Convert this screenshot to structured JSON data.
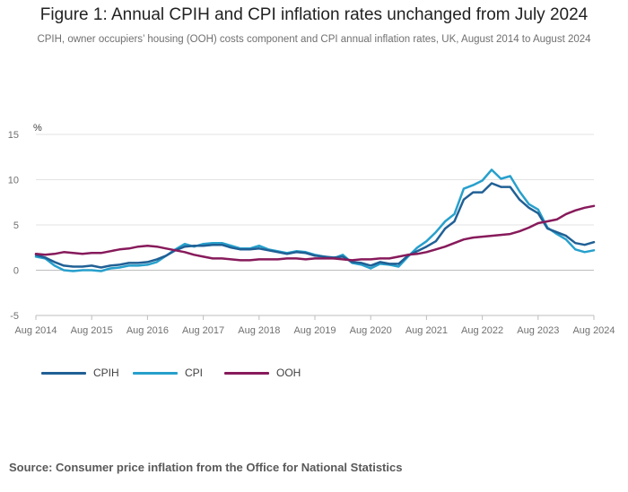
{
  "chart_data": {
    "type": "line",
    "title": "Figure 1: Annual CPIH and CPI inflation rates unchanged from July 2024",
    "subtitle": "CPIH, owner occupiers’ housing (OOH) costs component and CPI annual inflation rates, UK, August 2014 to August 2024",
    "ylabel": "%",
    "xlabel": "",
    "ylim": [
      -5,
      15
    ],
    "yticks": [
      "-5",
      "0",
      "5",
      "10",
      "15"
    ],
    "xlim": [
      2014.583,
      2024.583
    ],
    "xticks": [
      "Aug 2014",
      "Aug 2015",
      "Aug 2016",
      "Aug 2017",
      "Aug 2018",
      "Aug 2019",
      "Aug 2020",
      "Aug 2021",
      "Aug 2022",
      "Aug 2023",
      "Aug 2024"
    ],
    "grid": "horizontal",
    "legend_position": "bottom-left",
    "series": [
      {
        "name": "CPIH",
        "color": "#206095",
        "keyframes": [
          [
            2014.583,
            1.7
          ],
          [
            2014.75,
            1.4
          ],
          [
            2014.917,
            0.9
          ],
          [
            2015.083,
            0.5
          ],
          [
            2015.25,
            0.4
          ],
          [
            2015.417,
            0.4
          ],
          [
            2015.583,
            0.5
          ],
          [
            2015.75,
            0.3
          ],
          [
            2015.917,
            0.5
          ],
          [
            2016.083,
            0.6
          ],
          [
            2016.25,
            0.8
          ],
          [
            2016.417,
            0.8
          ],
          [
            2016.583,
            0.9
          ],
          [
            2016.75,
            1.2
          ],
          [
            2016.917,
            1.6
          ],
          [
            2017.083,
            2.2
          ],
          [
            2017.25,
            2.6
          ],
          [
            2017.417,
            2.7
          ],
          [
            2017.583,
            2.7
          ],
          [
            2017.75,
            2.8
          ],
          [
            2017.917,
            2.8
          ],
          [
            2018.083,
            2.5
          ],
          [
            2018.25,
            2.3
          ],
          [
            2018.417,
            2.3
          ],
          [
            2018.583,
            2.4
          ],
          [
            2018.75,
            2.2
          ],
          [
            2018.917,
            2.0
          ],
          [
            2019.083,
            1.8
          ],
          [
            2019.25,
            2.0
          ],
          [
            2019.417,
            1.9
          ],
          [
            2019.583,
            1.6
          ],
          [
            2019.75,
            1.5
          ],
          [
            2019.917,
            1.4
          ],
          [
            2020.083,
            1.5
          ],
          [
            2020.25,
            0.9
          ],
          [
            2020.417,
            0.8
          ],
          [
            2020.583,
            0.5
          ],
          [
            2020.75,
            0.9
          ],
          [
            2020.917,
            0.7
          ],
          [
            2021.083,
            0.7
          ],
          [
            2021.25,
            1.6
          ],
          [
            2021.417,
            2.1
          ],
          [
            2021.583,
            2.6
          ],
          [
            2021.75,
            3.2
          ],
          [
            2021.917,
            4.6
          ],
          [
            2022.083,
            5.4
          ],
          [
            2022.25,
            7.8
          ],
          [
            2022.417,
            8.6
          ],
          [
            2022.583,
            8.6
          ],
          [
            2022.75,
            9.6
          ],
          [
            2022.917,
            9.2
          ],
          [
            2023.083,
            9.2
          ],
          [
            2023.25,
            7.8
          ],
          [
            2023.417,
            6.9
          ],
          [
            2023.583,
            6.3
          ],
          [
            2023.75,
            4.6
          ],
          [
            2023.917,
            4.2
          ],
          [
            2024.083,
            3.8
          ],
          [
            2024.25,
            3.0
          ],
          [
            2024.417,
            2.8
          ],
          [
            2024.583,
            3.1
          ]
        ]
      },
      {
        "name": "CPI",
        "color": "#27a0cc",
        "keyframes": [
          [
            2014.583,
            1.5
          ],
          [
            2014.75,
            1.3
          ],
          [
            2014.917,
            0.5
          ],
          [
            2015.083,
            0.0
          ],
          [
            2015.25,
            -0.1
          ],
          [
            2015.417,
            0.0
          ],
          [
            2015.583,
            0.0
          ],
          [
            2015.75,
            -0.1
          ],
          [
            2015.917,
            0.2
          ],
          [
            2016.083,
            0.3
          ],
          [
            2016.25,
            0.5
          ],
          [
            2016.417,
            0.5
          ],
          [
            2016.583,
            0.6
          ],
          [
            2016.75,
            0.9
          ],
          [
            2016.917,
            1.6
          ],
          [
            2017.083,
            2.3
          ],
          [
            2017.25,
            2.9
          ],
          [
            2017.417,
            2.6
          ],
          [
            2017.583,
            2.9
          ],
          [
            2017.75,
            3.0
          ],
          [
            2017.917,
            3.0
          ],
          [
            2018.083,
            2.7
          ],
          [
            2018.25,
            2.4
          ],
          [
            2018.417,
            2.4
          ],
          [
            2018.583,
            2.7
          ],
          [
            2018.75,
            2.3
          ],
          [
            2018.917,
            2.1
          ],
          [
            2019.083,
            1.9
          ],
          [
            2019.25,
            2.1
          ],
          [
            2019.417,
            2.0
          ],
          [
            2019.583,
            1.7
          ],
          [
            2019.75,
            1.5
          ],
          [
            2019.917,
            1.3
          ],
          [
            2020.083,
            1.7
          ],
          [
            2020.25,
            0.8
          ],
          [
            2020.417,
            0.6
          ],
          [
            2020.583,
            0.2
          ],
          [
            2020.75,
            0.7
          ],
          [
            2020.917,
            0.6
          ],
          [
            2021.083,
            0.4
          ],
          [
            2021.25,
            1.5
          ],
          [
            2021.417,
            2.5
          ],
          [
            2021.583,
            3.2
          ],
          [
            2021.75,
            4.2
          ],
          [
            2021.917,
            5.4
          ],
          [
            2022.083,
            6.2
          ],
          [
            2022.25,
            9.0
          ],
          [
            2022.417,
            9.4
          ],
          [
            2022.583,
            9.9
          ],
          [
            2022.75,
            11.1
          ],
          [
            2022.917,
            10.1
          ],
          [
            2023.083,
            10.4
          ],
          [
            2023.25,
            8.7
          ],
          [
            2023.417,
            7.3
          ],
          [
            2023.583,
            6.7
          ],
          [
            2023.75,
            4.7
          ],
          [
            2023.917,
            4.0
          ],
          [
            2024.083,
            3.4
          ],
          [
            2024.25,
            2.3
          ],
          [
            2024.417,
            2.0
          ],
          [
            2024.583,
            2.2
          ]
        ]
      },
      {
        "name": "OOH",
        "color": "#871a5b",
        "keyframes": [
          [
            2014.583,
            1.8
          ],
          [
            2014.75,
            1.7
          ],
          [
            2014.917,
            1.8
          ],
          [
            2015.083,
            2.0
          ],
          [
            2015.25,
            1.9
          ],
          [
            2015.417,
            1.8
          ],
          [
            2015.583,
            1.9
          ],
          [
            2015.75,
            1.9
          ],
          [
            2015.917,
            2.1
          ],
          [
            2016.083,
            2.3
          ],
          [
            2016.25,
            2.4
          ],
          [
            2016.417,
            2.6
          ],
          [
            2016.583,
            2.7
          ],
          [
            2016.75,
            2.6
          ],
          [
            2016.917,
            2.4
          ],
          [
            2017.083,
            2.2
          ],
          [
            2017.25,
            2.0
          ],
          [
            2017.417,
            1.7
          ],
          [
            2017.583,
            1.5
          ],
          [
            2017.75,
            1.3
          ],
          [
            2017.917,
            1.3
          ],
          [
            2018.083,
            1.2
          ],
          [
            2018.25,
            1.1
          ],
          [
            2018.417,
            1.1
          ],
          [
            2018.583,
            1.2
          ],
          [
            2018.75,
            1.2
          ],
          [
            2018.917,
            1.2
          ],
          [
            2019.083,
            1.3
          ],
          [
            2019.25,
            1.3
          ],
          [
            2019.417,
            1.2
          ],
          [
            2019.583,
            1.3
          ],
          [
            2019.75,
            1.3
          ],
          [
            2019.917,
            1.3
          ],
          [
            2020.083,
            1.2
          ],
          [
            2020.25,
            1.1
          ],
          [
            2020.417,
            1.2
          ],
          [
            2020.583,
            1.2
          ],
          [
            2020.75,
            1.3
          ],
          [
            2020.917,
            1.3
          ],
          [
            2021.083,
            1.5
          ],
          [
            2021.25,
            1.7
          ],
          [
            2021.417,
            1.8
          ],
          [
            2021.583,
            2.0
          ],
          [
            2021.75,
            2.3
          ],
          [
            2021.917,
            2.6
          ],
          [
            2022.083,
            3.0
          ],
          [
            2022.25,
            3.4
          ],
          [
            2022.417,
            3.6
          ],
          [
            2022.583,
            3.7
          ],
          [
            2022.75,
            3.8
          ],
          [
            2022.917,
            3.9
          ],
          [
            2023.083,
            4.0
          ],
          [
            2023.25,
            4.3
          ],
          [
            2023.417,
            4.7
          ],
          [
            2023.583,
            5.2
          ],
          [
            2023.75,
            5.4
          ],
          [
            2023.917,
            5.6
          ],
          [
            2024.083,
            6.2
          ],
          [
            2024.25,
            6.6
          ],
          [
            2024.417,
            6.9
          ],
          [
            2024.583,
            7.1
          ]
        ]
      }
    ]
  },
  "legend": {
    "items": [
      {
        "label": "CPIH",
        "color": "#206095"
      },
      {
        "label": "CPI",
        "color": "#27a0cc"
      },
      {
        "label": "OOH",
        "color": "#871a5b"
      }
    ]
  },
  "source": "Source: Consumer price inflation from the Office for National Statistics"
}
